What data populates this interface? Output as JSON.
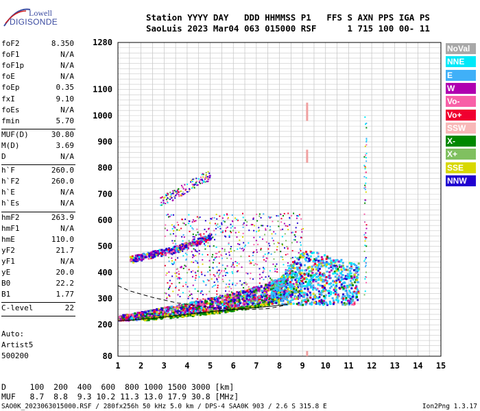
{
  "logo": {
    "line1": "Lowell",
    "line2": "DIGISONDE"
  },
  "header": {
    "line1": "Station YYYY DAY   DDD HHMMSS P1   FFS S AXN PPS IGA PS",
    "line2": "SaoLuis 2023 Mar04 063 015000 RSF      1 715 100 00- 11"
  },
  "params": {
    "group1": [
      {
        "name": "foF2",
        "value": "8.350"
      },
      {
        "name": "foF1",
        "value": "N/A"
      },
      {
        "name": "foF1p",
        "value": "N/A"
      },
      {
        "name": "foE",
        "value": "N/A"
      },
      {
        "name": "foEp",
        "value": "0.35"
      },
      {
        "name": "fxI",
        "value": "9.10"
      },
      {
        "name": "foEs",
        "value": "N/A"
      },
      {
        "name": "fmin",
        "value": "5.70"
      }
    ],
    "group2": [
      {
        "name": "MUF(D)",
        "value": "30.80"
      },
      {
        "name": "M(D)",
        "value": "3.69"
      },
      {
        "name": "D",
        "value": "N/A"
      }
    ],
    "group3": [
      {
        "name": "h`F",
        "value": "260.0"
      },
      {
        "name": "h`F2",
        "value": "260.0"
      },
      {
        "name": "h`E",
        "value": "N/A"
      },
      {
        "name": "h`Es",
        "value": "N/A"
      }
    ],
    "group4": [
      {
        "name": "hmF2",
        "value": "263.9"
      },
      {
        "name": "hmF1",
        "value": "N/A"
      },
      {
        "name": "hmE",
        "value": "110.0"
      },
      {
        "name": "yF2",
        "value": "21.7"
      },
      {
        "name": "yF1",
        "value": "N/A"
      },
      {
        "name": "yE",
        "value": "20.0"
      },
      {
        "name": "B0",
        "value": "22.2"
      },
      {
        "name": "B1",
        "value": "1.77"
      }
    ],
    "group5": [
      {
        "name": "C-level",
        "value": "22"
      }
    ]
  },
  "auto": {
    "line1": "Auto:",
    "line2": "Artist5",
    "line3": "500200"
  },
  "legend": [
    {
      "label": "NoVal",
      "color": "#a8a8a8"
    },
    {
      "label": "NNE",
      "color": "#00e8f8"
    },
    {
      "label": "E",
      "color": "#40b0f8"
    },
    {
      "label": "W",
      "color": "#b000b0"
    },
    {
      "label": "Vo-",
      "color": "#f860a8"
    },
    {
      "label": "Vo+",
      "color": "#f00030"
    },
    {
      "label": "SSW",
      "color": "#f8b8b8"
    },
    {
      "label": "X-",
      "color": "#008800"
    },
    {
      "label": "X+",
      "color": "#80c060"
    },
    {
      "label": "SSE",
      "color": "#d8d800"
    },
    {
      "label": "NNW",
      "color": "#2000d0"
    }
  ],
  "footer": {
    "line1": "D     100  200  400  600  800 1000 1500 3000 [km]",
    "line2": "MUF   8.7  8.8  9.3 10.2 11.3 13.0 17.9 30.8 [MHz]",
    "line3": "SAO0K_2023063015000.RSF / 280fx256h 50 kHz 5.0 km / DPS-4 SAA0K 903 / 2.6 S 315.8 E",
    "version": "Ion2Png 1.3.17"
  },
  "chart_data": {
    "type": "scatter",
    "xlim": [
      1,
      15
    ],
    "ylim": [
      80,
      1280
    ],
    "x_ticks": [
      "1",
      "2",
      "3",
      "4",
      "5",
      "6",
      "7",
      "8",
      "9",
      "10",
      "11",
      "12",
      "13",
      "14",
      "15"
    ],
    "y_ticks": [
      {
        "value": 80,
        "label": "80"
      },
      {
        "value": 200,
        "label": "200"
      },
      {
        "value": 300,
        "label": "300"
      },
      {
        "value": 400,
        "label": "400"
      },
      {
        "value": 500,
        "label": "500"
      },
      {
        "value": 600,
        "label": "600"
      },
      {
        "value": 700,
        "label": "700"
      },
      {
        "value": 800,
        "label": "800"
      },
      {
        "value": 900,
        "label": "900"
      },
      {
        "value": 1000,
        "label": "1000"
      },
      {
        "value": 1100,
        "label": "1100"
      },
      {
        "value": 1280,
        "label": "1280"
      }
    ],
    "grid": true,
    "profile_curve": [
      [
        1.0,
        350
      ],
      [
        1.5,
        330
      ],
      [
        2.5,
        305
      ],
      [
        3.5,
        285
      ],
      [
        4.5,
        272
      ],
      [
        5.5,
        262
      ],
      [
        6.5,
        258
      ],
      [
        7.5,
        262
      ],
      [
        8.0,
        270
      ],
      [
        8.35,
        278
      ],
      [
        7.5,
        270
      ],
      [
        6.5,
        262
      ],
      [
        5.5,
        255
      ],
      [
        4.5,
        245
      ],
      [
        3.5,
        235
      ],
      [
        2.5,
        225
      ],
      [
        1.5,
        218
      ],
      [
        1.0,
        215
      ]
    ],
    "echo_traces": [
      {
        "name": "O trace lower",
        "x": [
          1.0,
          1.5,
          2.0,
          2.5,
          3.0,
          3.5,
          4.0,
          4.5,
          5.0,
          5.5,
          6.0,
          6.5,
          7.0,
          7.5,
          8.0,
          8.35
        ],
        "y": [
          220,
          220,
          225,
          228,
          232,
          236,
          240,
          245,
          250,
          255,
          262,
          268,
          275,
          285,
          300,
          330
        ]
      },
      {
        "name": "second hop",
        "x": [
          1.5,
          2.0,
          2.5,
          3.0,
          3.5,
          4.0,
          4.5,
          5.0
        ],
        "y": [
          440,
          450,
          460,
          470,
          480,
          495,
          510,
          530
        ]
      },
      {
        "name": "third hop",
        "x": [
          2.8,
          3.2,
          3.6,
          4.0,
          4.4,
          4.8
        ],
        "y": [
          660,
          680,
          700,
          720,
          740,
          760
        ]
      },
      {
        "name": "X cloud",
        "x": [
          8.0,
          8.4,
          8.8,
          9.2,
          9.6,
          10.0,
          10.4,
          10.8,
          11.2
        ],
        "y": [
          330,
          380,
          420,
          440,
          430,
          420,
          410,
          400,
          390
        ]
      }
    ],
    "markers": [
      {
        "name": "foF2 marker",
        "x": 9.2,
        "y_range": [
          980,
          1050
        ]
      },
      {
        "name": "MUF marker",
        "x": 9.2,
        "y_range": [
          820,
          870
        ]
      },
      {
        "name": "foF2 marker low",
        "x": 9.2,
        "y_range": [
          80,
          100
        ]
      }
    ]
  }
}
